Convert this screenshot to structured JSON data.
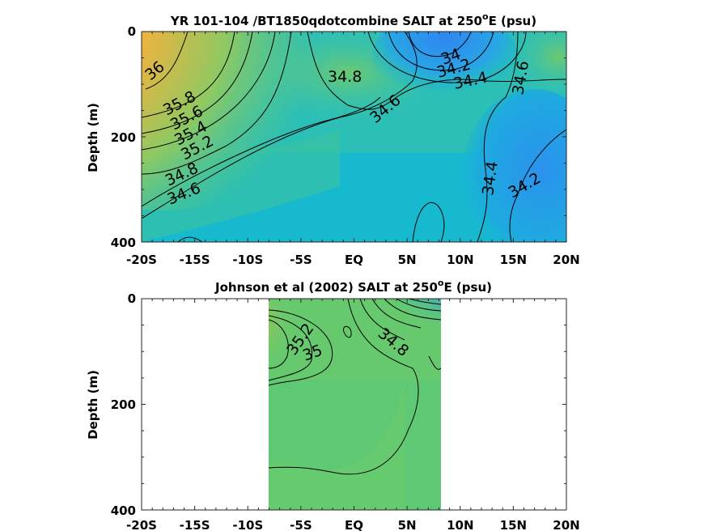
{
  "chart_data": [
    {
      "type": "heatmap",
      "title_main": "YR 101-104 /BT1850qdotcombine SALT at 250",
      "title_sup": "o",
      "title_end": "E (psu)",
      "ylabel": "Depth (m)",
      "x_ticks": [
        "-20S",
        "-15S",
        "-10S",
        "-5S",
        "EQ",
        "5N",
        "10N",
        "15N",
        "20N"
      ],
      "y_ticks": [
        "0",
        "200",
        "400"
      ],
      "xlim": [
        -20,
        20
      ],
      "ylim": [
        0,
        400
      ],
      "contour_labels": [
        {
          "text": "36",
          "lat": -19.0,
          "depth": 75
        },
        {
          "text": "35.8",
          "lat": -17.0,
          "depth": 135
        },
        {
          "text": "35.6",
          "lat": -16.5,
          "depth": 165
        },
        {
          "text": "35.4",
          "lat": -16.5,
          "depth": 185
        },
        {
          "text": "35.2",
          "lat": -15.8,
          "depth": 210
        },
        {
          "text": "34.8",
          "lat": -17.5,
          "depth": 285
        },
        {
          "text": "34.6",
          "lat": -17.0,
          "depth": 310
        },
        {
          "text": "34.8",
          "lat": -0.5,
          "depth": 85
        },
        {
          "text": "34.6",
          "lat": 2.5,
          "depth": 150
        },
        {
          "text": "34",
          "lat": 9.0,
          "depth": 55
        },
        {
          "text": "34.2",
          "lat": 9.2,
          "depth": 80
        },
        {
          "text": "34.4",
          "lat": 10.3,
          "depth": 95
        },
        {
          "text": "34.6",
          "lat": 16.0,
          "depth": 95
        },
        {
          "text": "34.4",
          "lat": 11.5,
          "depth": 280
        },
        {
          "text": "34.2",
          "lat": 16.5,
          "depth": 290
        }
      ]
    },
    {
      "type": "heatmap",
      "title_main": "Johnson et al (2002) SALT at 250",
      "title_sup": "o",
      "title_end": "E (psu)",
      "ylabel": "Depth (m)",
      "x_ticks": [
        "-20S",
        "-15S",
        "-10S",
        "-5S",
        "EQ",
        "5N",
        "10N",
        "15N",
        "20N"
      ],
      "y_ticks": [
        "0",
        "200",
        "400"
      ],
      "xlim": [
        -20,
        20
      ],
      "ylim": [
        0,
        400
      ],
      "data_extent_lat": [
        -8,
        8.2
      ],
      "contour_labels": [
        {
          "text": "35.2",
          "lat": -4.8,
          "depth": 85
        },
        {
          "text": "35",
          "lat": -3.5,
          "depth": 105
        },
        {
          "text": "34.8",
          "lat": 3.5,
          "depth": 85
        }
      ]
    }
  ]
}
